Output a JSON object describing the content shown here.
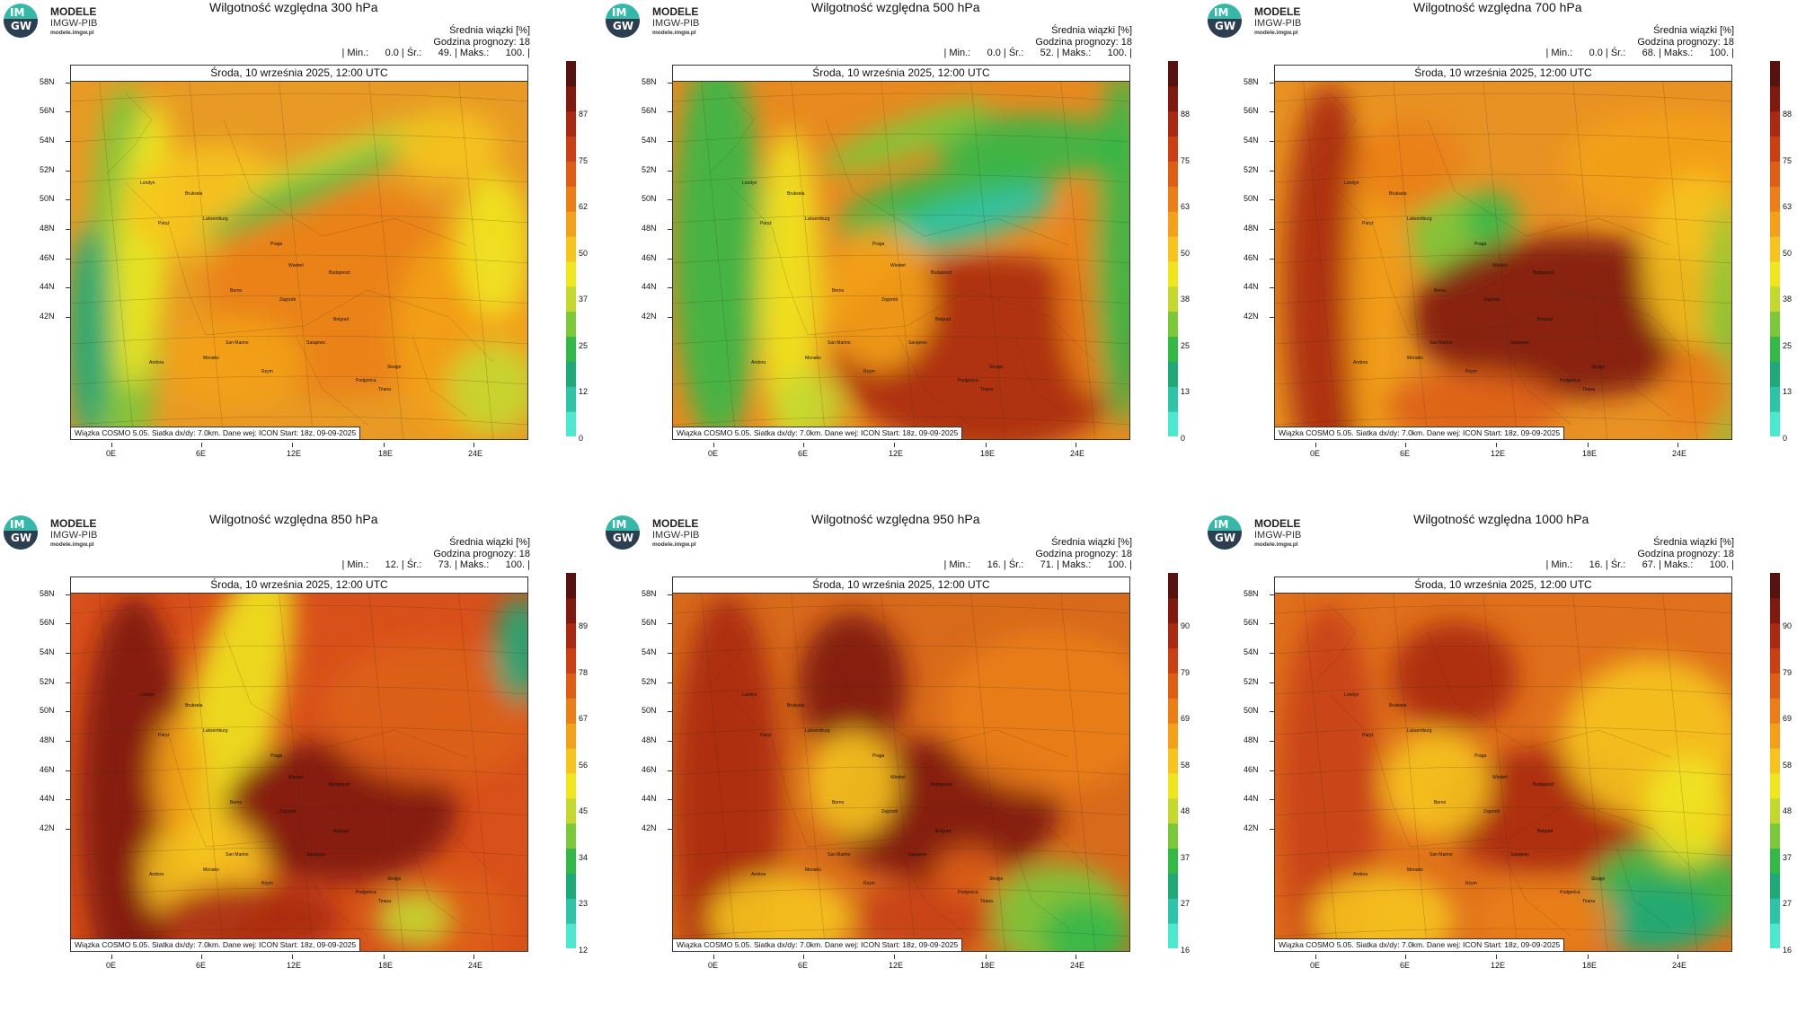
{
  "logo": {
    "line1": "MODELE",
    "line2": "IMGW-PIB",
    "line3": "modele.imgw.pl",
    "circle_top": "IM",
    "circle_bottom": "GW"
  },
  "common": {
    "stats_header": "Średnia wiązki [%]",
    "forecast_hour": "Godzina prognozy: 18",
    "date": "Środa, 10 września 2025, 12:00 UTC",
    "footer": "Wiązka COSMO 5.05. Siatka dx/dy: 7.0km. Dane wej: ICON Start: 18z, 09-09-2025",
    "lat_labels": [
      "58N",
      "56N",
      "54N",
      "52N",
      "50N",
      "48N",
      "46N",
      "44N",
      "42N"
    ],
    "lon_labels": [
      "0E",
      "6E",
      "12E",
      "18E",
      "24E"
    ],
    "cities": [
      "Londyn",
      "Bruksela",
      "Luksemburg",
      "Paryż",
      "Praga",
      "Wiedeń",
      "Budapeszt",
      "Berno",
      "Zagrzeb",
      "Belgrad",
      "Sarajewo",
      "San Marino",
      "Monako",
      "Andora",
      "Rzym",
      "Skopje",
      "Tirana",
      "Podgorica"
    ]
  },
  "panels": [
    {
      "title": "Wilgotność względna 300 hPa",
      "stats": "| Min.:      0.0 | Śr.:      49. | Maks.:      100. |",
      "colorbar_labels": [
        "87",
        "75",
        "62",
        "50",
        "37",
        "25",
        "12",
        "0"
      ]
    },
    {
      "title": "Wilgotność względna 500 hPa",
      "stats": "| Min.:      0.0 | Śr.:      52. | Maks.:      100. |",
      "colorbar_labels": [
        "88",
        "75",
        "63",
        "50",
        "38",
        "25",
        "13",
        "0"
      ]
    },
    {
      "title": "Wilgotność względna 700 hPa",
      "stats": "| Min.:      0.0 | Śr.:      68. | Maks.:      100. |",
      "colorbar_labels": [
        "88",
        "75",
        "63",
        "50",
        "38",
        "25",
        "13",
        "0"
      ]
    },
    {
      "title": "Wilgotność względna 850 hPa",
      "stats": "| Min.:      12. | Śr.:      73. | Maks.:      100. |",
      "colorbar_labels": [
        "89",
        "78",
        "67",
        "56",
        "45",
        "34",
        "23",
        "12"
      ]
    },
    {
      "title": "Wilgotność względna 950 hPa",
      "stats": "| Min.:      16. | Śr.:      71. | Maks.:      100. |",
      "colorbar_labels": [
        "90",
        "79",
        "69",
        "58",
        "48",
        "37",
        "27",
        "16"
      ]
    },
    {
      "title": "Wilgotność względna 1000 hPa",
      "stats": "| Min.:      16. | Śr.:      67. | Maks.:      100. |",
      "colorbar_labels": [
        "90",
        "79",
        "69",
        "58",
        "48",
        "37",
        "27",
        "16"
      ]
    }
  ],
  "colors": {
    "colorbar": [
      "#4de8d0",
      "#2fc4a8",
      "#1fa878",
      "#34b848",
      "#7cc83a",
      "#c4d830",
      "#f0e620",
      "#f6c41c",
      "#f3a11a",
      "#ea7f18",
      "#dd5f16",
      "#c84014",
      "#a82a12",
      "#7e1a10",
      "#571210"
    ],
    "base": [
      "#e89a24",
      "#e88a20",
      "#e89224",
      "#d8501a",
      "#d86a1c",
      "#e0701c"
    ]
  }
}
